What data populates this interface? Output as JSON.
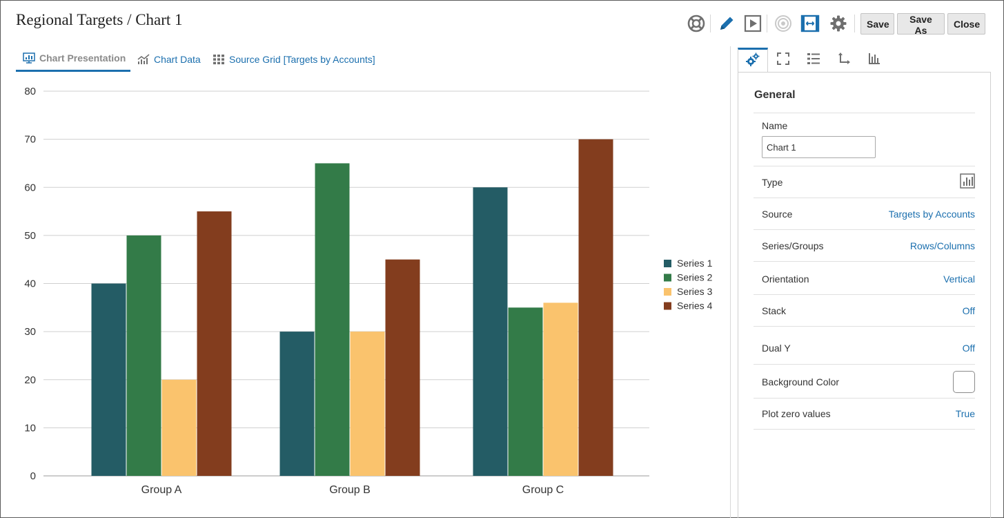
{
  "header": {
    "title": "Regional Targets / Chart 1",
    "buttons": {
      "save": "Save",
      "save_as": "Save As",
      "close": "Close"
    },
    "icons": [
      "lifebuoy-icon",
      "pencil-icon",
      "play-icon",
      "target-icon",
      "fit-width-icon",
      "gear-icon"
    ]
  },
  "tabs": [
    {
      "label": "Chart Presentation",
      "icon": "chart-presentation-icon",
      "active": true
    },
    {
      "label": "Chart Data",
      "icon": "chart-data-icon",
      "active": false
    },
    {
      "label": "Source Grid [Targets by Accounts]",
      "icon": "grid-icon",
      "active": false
    }
  ],
  "chart_data": {
    "type": "bar",
    "categories": [
      "Group A",
      "Group B",
      "Group C"
    ],
    "series": [
      {
        "name": "Series 1",
        "color": "#245c65",
        "values": [
          40,
          30,
          60
        ]
      },
      {
        "name": "Series 2",
        "color": "#337b48",
        "values": [
          50,
          65,
          35
        ]
      },
      {
        "name": "Series 3",
        "color": "#fac36d",
        "values": [
          20,
          30,
          36
        ]
      },
      {
        "name": "Series 4",
        "color": "#833d1e",
        "values": [
          55,
          45,
          70
        ]
      }
    ],
    "ylim": [
      0,
      80
    ],
    "yticks": [
      0,
      10,
      20,
      30,
      40,
      50,
      60,
      70,
      80
    ],
    "grid": true,
    "legend_position": "right",
    "title": "",
    "xlabel": "",
    "ylabel": ""
  },
  "panel": {
    "tabs": [
      "general-tab-icon",
      "fullscreen-icon",
      "legend-list-icon",
      "axis-icon",
      "bar-chart-icon"
    ],
    "title": "General",
    "name_label": "Name",
    "name_value": "Chart 1",
    "rows": [
      {
        "label": "Type",
        "value": "",
        "kind": "icon"
      },
      {
        "label": "Source",
        "value": "Targets by Accounts"
      },
      {
        "label": "Series/Groups",
        "value": "Rows/Columns"
      },
      {
        "label": "Orientation",
        "value": "Vertical"
      },
      {
        "label": "Stack",
        "value": "Off"
      },
      {
        "label": "Dual Y",
        "value": "Off"
      },
      {
        "label": "Background Color",
        "value": "",
        "kind": "swatch"
      },
      {
        "label": "Plot zero values",
        "value": "True"
      }
    ]
  },
  "colors": {
    "accent": "#1b6fae"
  }
}
